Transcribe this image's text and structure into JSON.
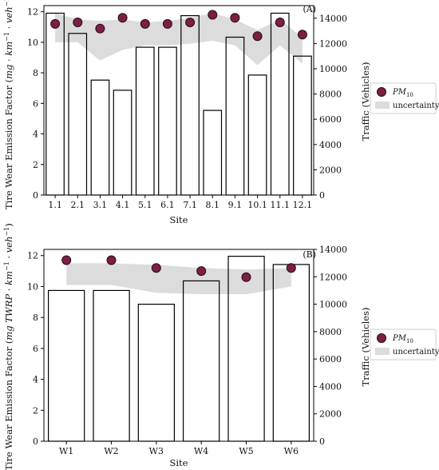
{
  "chart_data": [
    {
      "panel": "(A)",
      "type": "bar",
      "categories": [
        "1.1",
        "2.1",
        "3.1",
        "4.1",
        "5.1",
        "6.1",
        "7.1",
        "8.1",
        "9.1",
        "10.1",
        "11.1",
        "12.1"
      ],
      "xlabel": "Site",
      "ylabel": "Tire Wear Emission Factor (mg · km⁻¹ · veh⁻¹)",
      "y2label": "Traffic (Vehicles)",
      "ylim": [
        0,
        12.4
      ],
      "yticks": [
        0,
        2,
        4,
        6,
        8,
        10,
        12
      ],
      "y2lim": [
        0,
        15000
      ],
      "y2ticks": [
        0,
        2000,
        4000,
        6000,
        8000,
        10000,
        12000,
        14000
      ],
      "series": [
        {
          "name": "PM10",
          "type": "scatter",
          "axis": "left",
          "values": [
            11.2,
            11.3,
            10.9,
            11.6,
            11.2,
            11.2,
            11.3,
            11.8,
            11.6,
            10.4,
            11.3,
            10.5
          ]
        },
        {
          "name": "uncertainty",
          "type": "area",
          "axis": "left",
          "upper": [
            11.9,
            11.5,
            11.4,
            11.5,
            11.3,
            11.4,
            11.6,
            11.9,
            11.5,
            10.8,
            11.5,
            10.3
          ],
          "lower": [
            10.0,
            10.0,
            8.8,
            9.5,
            9.8,
            9.8,
            9.9,
            10.1,
            9.8,
            8.5,
            9.8,
            8.6
          ]
        },
        {
          "name": "Traffic",
          "type": "bar",
          "axis": "right",
          "values": [
            14400,
            12800,
            9100,
            8300,
            11700,
            11700,
            14200,
            6700,
            12500,
            9500,
            14400,
            11000
          ]
        }
      ],
      "legend": {
        "position": "right",
        "entries": [
          "PM10",
          "uncertainty"
        ]
      },
      "grid": false
    },
    {
      "panel": "(B)",
      "type": "bar",
      "categories": [
        "W1",
        "W2",
        "W3",
        "W4",
        "W5",
        "W6"
      ],
      "xlabel": "Site",
      "ylabel": "Tire Wear Emission Factor (mg TWRP · km⁻¹ · veh⁻¹)",
      "y2label": "Traffic (Vehicles)",
      "ylim": [
        0,
        12.4
      ],
      "yticks": [
        0,
        2,
        4,
        6,
        8,
        10,
        12
      ],
      "y2lim": [
        0,
        14000
      ],
      "y2ticks": [
        0,
        2000,
        4000,
        6000,
        8000,
        10000,
        12000,
        14000
      ],
      "series": [
        {
          "name": "PM10",
          "type": "scatter",
          "axis": "left",
          "values": [
            11.7,
            11.7,
            11.2,
            11.0,
            10.6,
            11.2
          ]
        },
        {
          "name": "uncertainty",
          "type": "area",
          "axis": "left",
          "upper": [
            11.5,
            11.5,
            11.4,
            11.2,
            11.1,
            11.2
          ],
          "lower": [
            10.1,
            10.1,
            9.6,
            9.5,
            9.5,
            10.0
          ]
        },
        {
          "name": "Traffic",
          "type": "bar",
          "axis": "right",
          "values": [
            11000,
            11000,
            10000,
            11700,
            13500,
            12900
          ]
        }
      ],
      "legend": {
        "position": "right",
        "entries": [
          "PM10",
          "uncertainty"
        ]
      },
      "grid": false
    }
  ],
  "colors": {
    "marker_fill": "#7b1f45",
    "marker_edge": "#2b0a18",
    "band": "#c9c9c9",
    "bar_edge": "#000000",
    "bar_fill": "#ffffff"
  }
}
